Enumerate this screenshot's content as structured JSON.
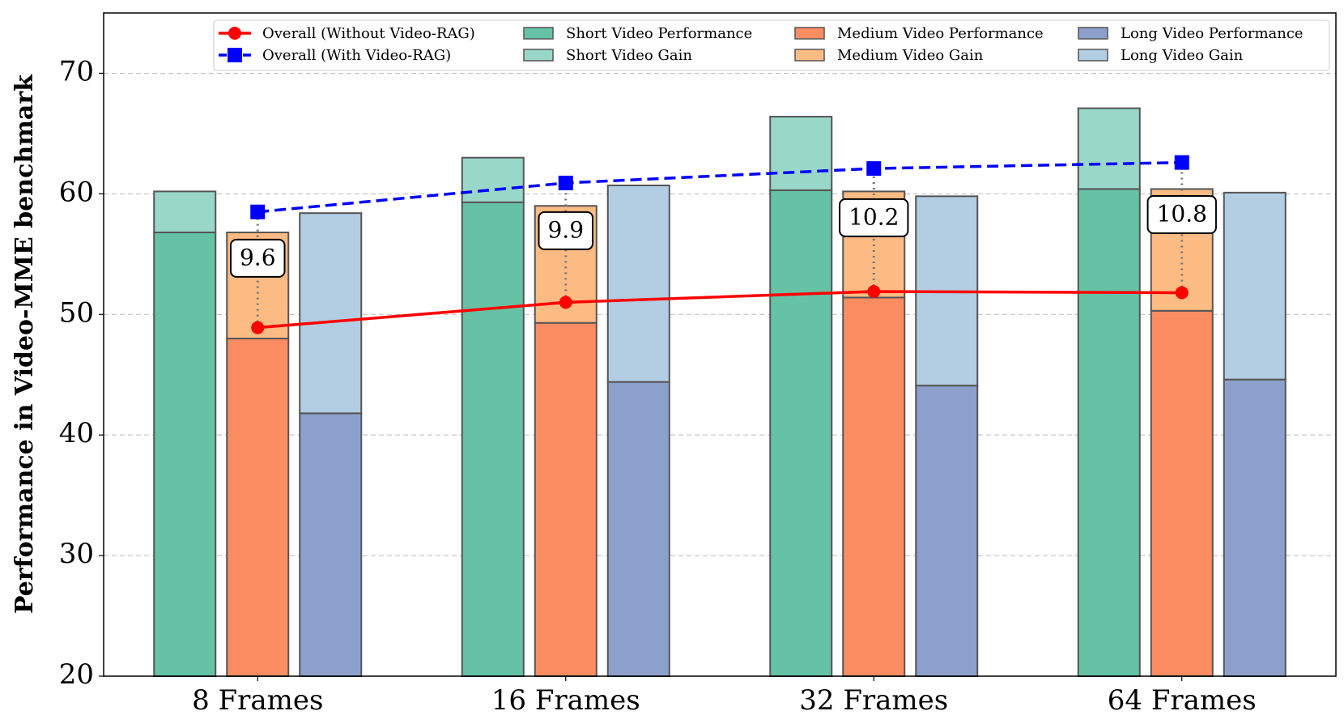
{
  "chart_data": {
    "type": "bar",
    "ylabel": "Performance in Video-MME benchmark",
    "categories": [
      "8 Frames",
      "16 Frames",
      "32 Frames",
      "64 Frames"
    ],
    "ylim": [
      20,
      75
    ],
    "yticks": [
      20,
      30,
      40,
      50,
      60,
      70
    ],
    "grid": true,
    "series": [
      {
        "name": "Overall (Without Video-RAG)",
        "type": "line",
        "marker": "circle",
        "dashed": false,
        "color": "#ff0000",
        "values": [
          48.9,
          51.0,
          51.9,
          51.8
        ]
      },
      {
        "name": "Overall (With Video-RAG)",
        "type": "line",
        "marker": "square",
        "dashed": true,
        "color": "#0000ff",
        "values": [
          58.5,
          60.9,
          62.1,
          62.6
        ]
      },
      {
        "name": "Short Video Performance",
        "type": "bar",
        "stacked": false,
        "color": "#66c2a5",
        "values": [
          56.8,
          59.3,
          60.3,
          60.4
        ]
      },
      {
        "name": "Short Video Gain",
        "type": "bar",
        "stacked": true,
        "color": "#99d8c9",
        "values": [
          3.4,
          3.7,
          6.1,
          6.7
        ]
      },
      {
        "name": "Medium Video Performance",
        "type": "bar",
        "stacked": false,
        "color": "#fc8d62",
        "values": [
          48.0,
          49.3,
          51.4,
          50.3
        ]
      },
      {
        "name": "Medium Video Gain",
        "type": "bar",
        "stacked": true,
        "color": "#fdbb84",
        "values": [
          8.8,
          9.7,
          8.8,
          10.1
        ]
      },
      {
        "name": "Long Video Performance",
        "type": "bar",
        "stacked": false,
        "color": "#8da0cb",
        "values": [
          41.8,
          44.4,
          44.1,
          44.6
        ]
      },
      {
        "name": "Long Video Gain",
        "type": "bar",
        "stacked": true,
        "color": "#b3cde3",
        "values": [
          16.6,
          16.3,
          15.7,
          15.5
        ]
      }
    ],
    "gain_labels": [
      9.6,
      9.9,
      10.2,
      10.8
    ]
  }
}
